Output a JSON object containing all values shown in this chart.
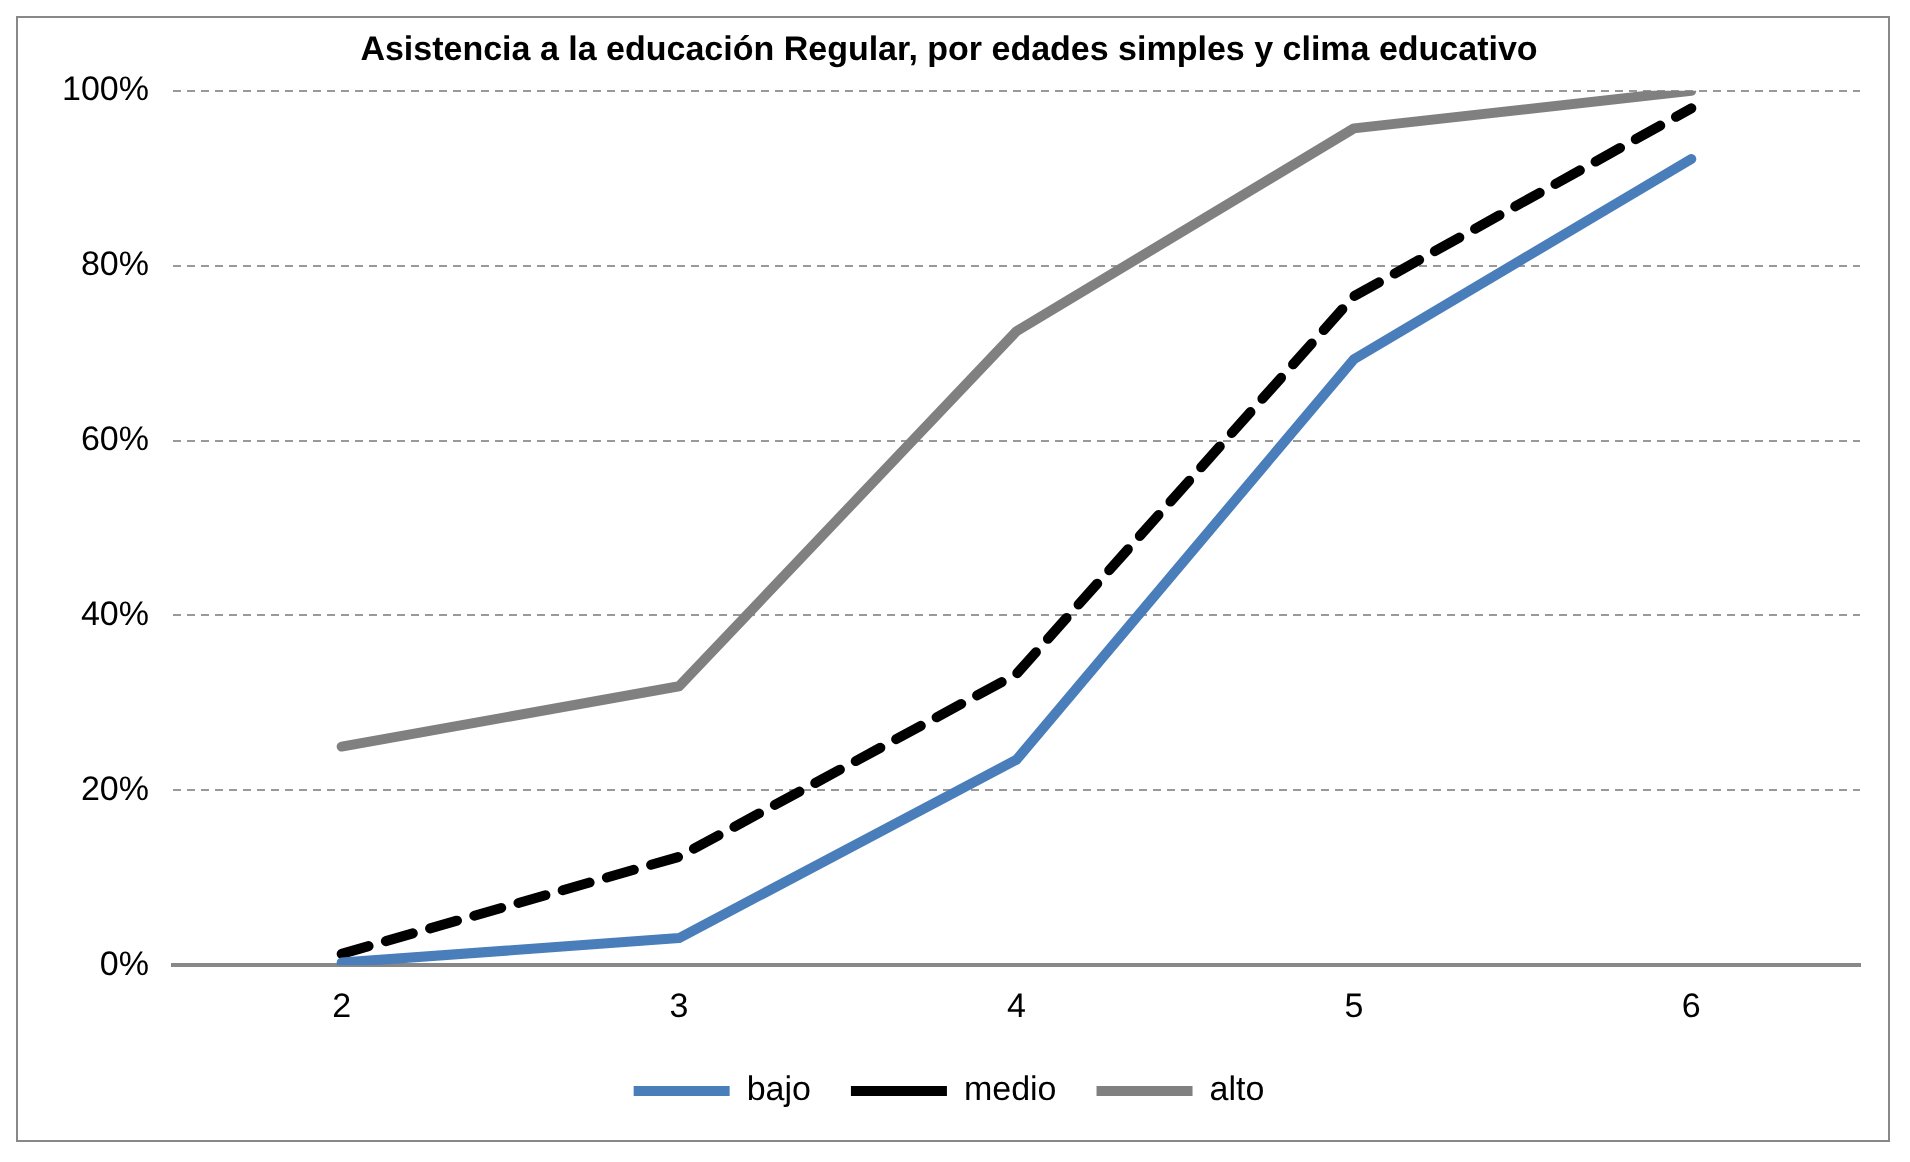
{
  "chart_data": {
    "type": "line",
    "title": "Asistencia a la educación Regular, por edades simples y clima educativo",
    "categories": [
      "2",
      "3",
      "4",
      "5",
      "6"
    ],
    "series": [
      {
        "name": "bajo",
        "color": "#4a7ebb",
        "values": [
          0.3,
          3.1,
          23.5,
          69.3,
          92.2
        ],
        "line_style": "solid"
      },
      {
        "name": "medio",
        "color": "#000000",
        "values": [
          1.3,
          12.4,
          33.3,
          76.5,
          98
        ],
        "line_style": "dashed"
      },
      {
        "name": "alto",
        "color": "#808080",
        "values": [
          25,
          31.9,
          72.5,
          95.7,
          100
        ],
        "line_style": "solid"
      }
    ],
    "ylim": [
      0,
      100
    ],
    "yticks": [
      {
        "value": 0,
        "label": "0%"
      },
      {
        "value": 20,
        "label": "20%"
      },
      {
        "value": 40,
        "label": "40%"
      },
      {
        "value": 60,
        "label": "60%"
      },
      {
        "value": 80,
        "label": "80%"
      },
      {
        "value": 100,
        "label": "100%"
      }
    ],
    "grid": "y",
    "legend": "bottom",
    "marker": "none"
  }
}
